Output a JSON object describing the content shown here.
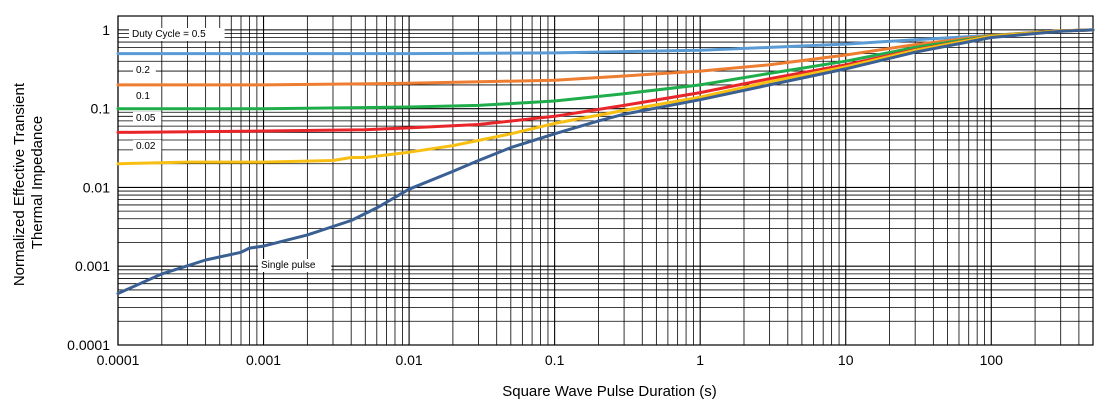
{
  "chart_data": {
    "type": "line",
    "title": "",
    "xlabel": "Square Wave Pulse Duration (s)",
    "ylabel": [
      "Normalized Effective Transient",
      "Thermal Impedance"
    ],
    "x_scale": "log",
    "y_scale": "log",
    "xlim": [
      0.0001,
      500
    ],
    "ylim": [
      0.0001,
      1.5
    ],
    "grid": true,
    "x_tick_labels": [
      "0.0001",
      "0.001",
      "0.01",
      "0.1",
      "1",
      "10",
      "100"
    ],
    "x_tick_values": [
      0.0001,
      0.001,
      0.01,
      0.1,
      1,
      10,
      100
    ],
    "y_tick_labels": [
      "0.0001",
      "0.001",
      "0.01",
      "0.1",
      "1"
    ],
    "y_tick_values": [
      0.0001,
      0.001,
      0.01,
      0.1,
      1
    ],
    "series": [
      {
        "name": "Duty Cycle = 0.5",
        "color": "#5b9bd5",
        "x": [
          0.0001,
          0.001,
          0.01,
          0.1,
          0.3,
          1,
          3,
          10,
          30,
          100,
          300,
          500
        ],
        "y": [
          0.5,
          0.5,
          0.5,
          0.51,
          0.53,
          0.55,
          0.6,
          0.66,
          0.75,
          0.85,
          0.97,
          1.0
        ]
      },
      {
        "name": "0.2",
        "color": "#ed7d31",
        "x": [
          0.0001,
          0.001,
          0.01,
          0.1,
          0.3,
          1,
          3,
          10,
          30,
          100,
          300,
          500
        ],
        "y": [
          0.2,
          0.2,
          0.21,
          0.23,
          0.26,
          0.3,
          0.36,
          0.48,
          0.65,
          0.85,
          0.97,
          1.0
        ]
      },
      {
        "name": "0.1",
        "color": "#1fad4b",
        "x": [
          0.0001,
          0.001,
          0.01,
          0.03,
          0.1,
          0.3,
          1,
          3,
          10,
          30,
          100,
          300,
          500
        ],
        "y": [
          0.1,
          0.1,
          0.105,
          0.11,
          0.125,
          0.155,
          0.2,
          0.28,
          0.4,
          0.6,
          0.84,
          0.97,
          1.0
        ]
      },
      {
        "name": "0.05",
        "color": "#e8262a",
        "x": [
          0.0001,
          0.001,
          0.005,
          0.01,
          0.03,
          0.1,
          0.3,
          1,
          3,
          10,
          30,
          100,
          300,
          500
        ],
        "y": [
          0.05,
          0.052,
          0.054,
          0.057,
          0.063,
          0.08,
          0.11,
          0.16,
          0.24,
          0.36,
          0.56,
          0.83,
          0.97,
          1.0
        ]
      },
      {
        "name": "0.02",
        "color": "#f8bf13",
        "x": [
          0.0001,
          0.0003,
          0.001,
          0.003,
          0.004,
          0.005,
          0.01,
          0.02,
          0.05,
          0.1,
          0.3,
          1,
          3,
          10,
          30,
          100,
          300,
          500
        ],
        "y": [
          0.02,
          0.021,
          0.021,
          0.022,
          0.024,
          0.024,
          0.028,
          0.034,
          0.048,
          0.065,
          0.095,
          0.14,
          0.22,
          0.34,
          0.55,
          0.83,
          0.97,
          1.0
        ]
      },
      {
        "name": "Single pulse",
        "color": "#3a5f93",
        "x": [
          0.0001,
          0.0002,
          0.0004,
          0.0007,
          0.0008,
          0.001,
          0.002,
          0.004,
          0.006,
          0.008,
          0.01,
          0.02,
          0.03,
          0.05,
          0.1,
          0.2,
          0.3,
          1,
          3,
          10,
          30,
          100,
          300,
          500
        ],
        "y": [
          0.00045,
          0.0008,
          0.0012,
          0.0015,
          0.0017,
          0.0018,
          0.0025,
          0.0038,
          0.0055,
          0.0075,
          0.0095,
          0.016,
          0.022,
          0.032,
          0.048,
          0.07,
          0.085,
          0.13,
          0.2,
          0.32,
          0.52,
          0.8,
          0.96,
          1.0
        ]
      }
    ]
  }
}
